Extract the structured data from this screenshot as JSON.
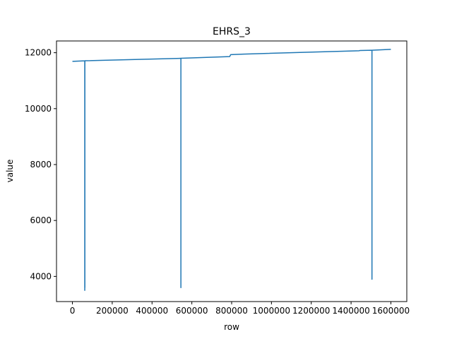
{
  "chart_data": {
    "type": "line",
    "title": "EHRS_3",
    "xlabel": "row",
    "ylabel": "value",
    "xlim": [
      -80000,
      1680000
    ],
    "ylim": [
      3100,
      12420
    ],
    "xticks": [
      0,
      200000,
      400000,
      600000,
      800000,
      1000000,
      1200000,
      1400000,
      1600000
    ],
    "yticks": [
      4000,
      6000,
      8000,
      10000,
      12000
    ],
    "xtick_labels": [
      "0",
      "200000",
      "400000",
      "600000",
      "800000",
      "1000000",
      "1200000",
      "1400000",
      "1600000"
    ],
    "ytick_labels": [
      "4000",
      "6000",
      "8000",
      "10000",
      "12000"
    ],
    "grid": false,
    "series": [
      {
        "color": "#1f77b4",
        "x": [
          0,
          62000,
          62000,
          62000,
          62500,
          62500,
          62500,
          545000,
          545000,
          545000,
          545500,
          545500,
          545500,
          790000,
          795000,
          860000,
          1440000,
          1445000,
          1505000,
          1505000,
          1505000,
          1505500,
          1505500,
          1505500,
          1600000
        ],
        "y": [
          11690,
          11710,
          3500,
          11710,
          11710,
          3600,
          11712,
          11800,
          3600,
          11800,
          11800,
          11800,
          11801,
          11860,
          11930,
          11950,
          12070,
          12080,
          12090,
          3900,
          12090,
          12090,
          12090,
          12090,
          12120
        ]
      }
    ]
  }
}
